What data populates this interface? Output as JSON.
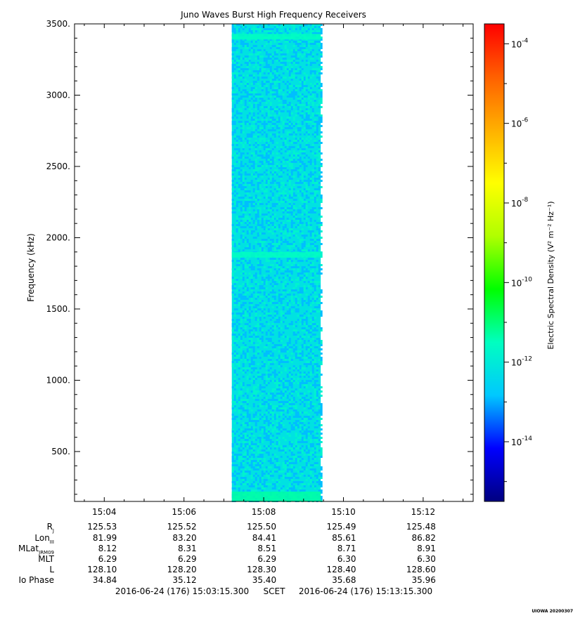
{
  "chart_data": {
    "type": "heatmap",
    "title": "Juno Waves Burst High Frequency Receivers",
    "ylabel": "Frequency (kHz)",
    "y_range": [
      150,
      3500
    ],
    "y_ticks": [
      {
        "v": 500,
        "label": "500."
      },
      {
        "v": 1000,
        "label": "1000."
      },
      {
        "v": 1500,
        "label": "1500."
      },
      {
        "v": 2000,
        "label": "2000."
      },
      {
        "v": 2500,
        "label": "2500."
      },
      {
        "v": 3000,
        "label": "3000."
      },
      {
        "v": 3500,
        "label": "3500."
      }
    ],
    "x_range_minutes": [
      3.2542,
      13.2542
    ],
    "x_ticks": [
      {
        "v": 4,
        "label": "15:04"
      },
      {
        "v": 6,
        "label": "15:06"
      },
      {
        "v": 8,
        "label": "15:08"
      },
      {
        "v": 10,
        "label": "15:10"
      },
      {
        "v": 12,
        "label": "15:12"
      }
    ],
    "data_block_minutes": [
      7.2,
      9.43
    ],
    "background_log_density": -12.2,
    "emission_bands": [
      {
        "freq_khz": 150,
        "log_density": -11.3
      },
      {
        "freq_khz": 1880,
        "log_density": -11.5
      },
      {
        "freq_khz": 3410,
        "log_density": -11.5
      }
    ],
    "colorbar": {
      "label": "Electric Spectral Density (V² m⁻² Hz⁻¹)",
      "log_range": [
        -15.5,
        -3.5
      ],
      "ticks": [
        {
          "v": -14,
          "label": "10^-14"
        },
        {
          "v": -12,
          "label": "10^-12"
        },
        {
          "v": -10,
          "label": "10^-10"
        },
        {
          "v": -8,
          "label": "10^-8"
        },
        {
          "v": -6,
          "label": "10^-6"
        },
        {
          "v": -4,
          "label": "10^-4"
        }
      ],
      "colors": [
        "#000080",
        "#0000ff",
        "#00c8ff",
        "#00ffc0",
        "#00ff00",
        "#b0ff00",
        "#ffff00",
        "#ffb000",
        "#ff6000",
        "#ff0000"
      ]
    },
    "ephemeris": {
      "rows": [
        {
          "label": "Rj",
          "values": [
            "125.53",
            "125.52",
            "125.50",
            "125.49",
            "125.48"
          ]
        },
        {
          "label": "LonIII",
          "values": [
            "81.99",
            "83.20",
            "84.41",
            "85.61",
            "86.82"
          ]
        },
        {
          "label": "MLatJRM09",
          "values": [
            "8.12",
            "8.31",
            "8.51",
            "8.71",
            "8.91"
          ]
        },
        {
          "label": "MLT",
          "values": [
            "6.29",
            "6.29",
            "6.29",
            "6.30",
            "6.30"
          ]
        },
        {
          "label": "L",
          "values": [
            "128.10",
            "128.20",
            "128.30",
            "128.40",
            "128.60"
          ]
        },
        {
          "label": "Io Phase",
          "values": [
            "34.84",
            "35.12",
            "35.40",
            "35.68",
            "35.96"
          ]
        }
      ]
    },
    "time_span": {
      "start": "2016-06-24 (176) 15:03:15.300",
      "scet": "SCET",
      "end": "2016-06-24 (176) 15:13:15.300"
    },
    "footer": "UIOWA 20200307"
  }
}
